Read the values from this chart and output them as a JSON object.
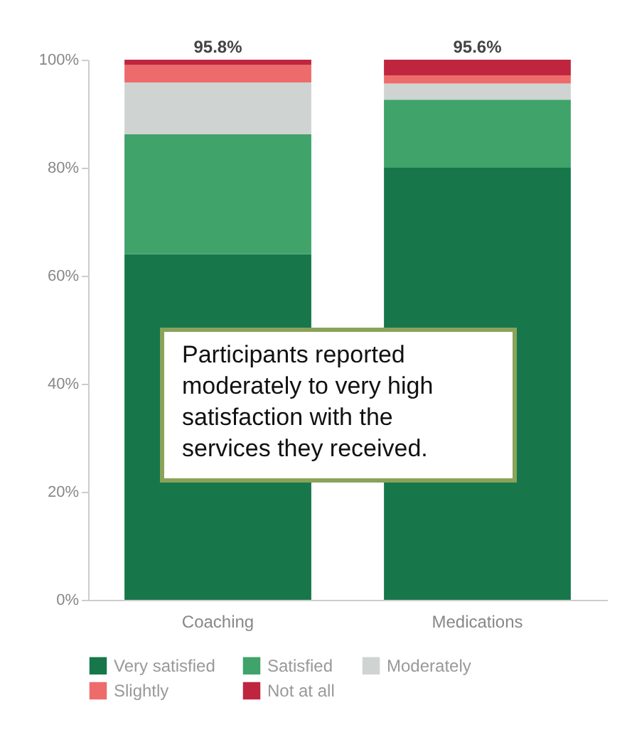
{
  "chart_data": {
    "type": "bar",
    "stacked": true,
    "categories": [
      "Coaching",
      "Medications"
    ],
    "series": [
      {
        "name": "Very satisfied",
        "color": "#17774a",
        "values": [
          64,
          80
        ]
      },
      {
        "name": "Satisfied",
        "color": "#3fa36a",
        "values": [
          22.2,
          12.6
        ]
      },
      {
        "name": "Moderately",
        "color": "#cfd4d2",
        "values": [
          9.6,
          3.0
        ]
      },
      {
        "name": "Slightly",
        "color": "#ee6b6b",
        "values": [
          3.2,
          1.5
        ]
      },
      {
        "name": "Not at all",
        "color": "#c0253f",
        "values": [
          1.0,
          2.9
        ]
      }
    ],
    "ylim": [
      0,
      100
    ],
    "yticks": [
      {
        "value": 0,
        "label": "0%"
      },
      {
        "value": 20,
        "label": "20%"
      },
      {
        "value": 40,
        "label": "40%"
      },
      {
        "value": 60,
        "label": "60%"
      },
      {
        "value": 80,
        "label": "80%"
      },
      {
        "value": 100,
        "label": "100%"
      }
    ],
    "annotations": [
      {
        "text": "95.8%",
        "x": "Coaching",
        "y": 100
      },
      {
        "text": "95.6%",
        "x": "Medications",
        "y": 100
      },
      "Participants reported moderately to very high satisfaction with the services they received."
    ],
    "grid": false,
    "legend": "bottom"
  }
}
